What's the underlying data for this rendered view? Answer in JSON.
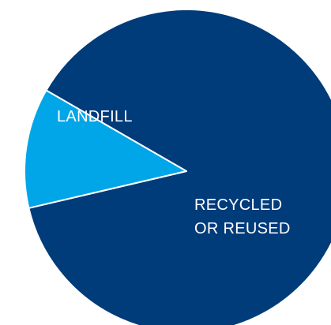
{
  "chart_data": {
    "type": "pie",
    "slices": [
      {
        "label_lines": [
          "RECYCLED",
          "OR REUSED"
        ],
        "value": 88,
        "color": "#003b7a"
      },
      {
        "label_lines": [
          "LANDFILL"
        ],
        "value": 12,
        "color": "#00a6e8"
      }
    ],
    "title": "",
    "legend": "none",
    "slice_border_color": "#ffffff"
  }
}
